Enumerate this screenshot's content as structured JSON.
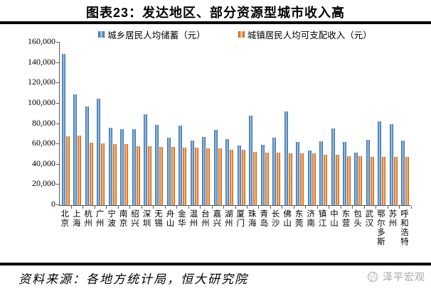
{
  "title": "图表23：发达地区、部分资源型城市收入高",
  "chart_data": {
    "type": "bar",
    "title": "图表23：发达地区、部分资源型城市收入高",
    "categories": [
      "北京",
      "上海",
      "杭州",
      "广州",
      "宁波",
      "南京",
      "绍兴",
      "深圳",
      "无锡",
      "舟山",
      "金华",
      "温州",
      "台州",
      "嘉兴",
      "湖州",
      "厦门",
      "珠海",
      "青岛",
      "长沙",
      "佛山",
      "东莞",
      "济南",
      "镇江",
      "中山",
      "东营",
      "包头",
      "武汉",
      "鄂尔多斯",
      "苏州",
      "呼和浩特"
    ],
    "series": [
      {
        "name": "城乡居民人均储蓄（元）",
        "color": "#4f81bd",
        "values": [
          149000,
          109000,
          97000,
          104500,
          76500,
          75000,
          75000,
          89500,
          79000,
          66500,
          78500,
          63700,
          67000,
          74000,
          64700,
          58800,
          87900,
          59300,
          66300,
          92100,
          62300,
          53700,
          63000,
          75600,
          61900,
          51900,
          64000,
          82700,
          79700,
          63500
        ]
      },
      {
        "name": "城镇居民人均可支配收入（元）",
        "color": "#ed7d31",
        "values": [
          68000,
          68500,
          61200,
          61000,
          60400,
          59900,
          58100,
          57700,
          57600,
          57200,
          56600,
          56300,
          56000,
          55800,
          54700,
          54600,
          52100,
          52000,
          51400,
          51300,
          51200,
          50700,
          49500,
          49400,
          48400,
          48300,
          47400,
          47300,
          47300,
          47200
        ]
      }
    ],
    "ylim": [
      0,
      160000
    ],
    "y_ticks": [
      "0",
      "20,000",
      "40,000",
      "60,000",
      "80,000",
      "100,000",
      "120,000",
      "140,000",
      "160,000"
    ],
    "grid": false,
    "legend_position": "top",
    "xlabel": "",
    "ylabel": ""
  },
  "footer": {
    "source": "资料来源：各地方统计局，恒大研究院",
    "brand": "泽平宏观"
  }
}
